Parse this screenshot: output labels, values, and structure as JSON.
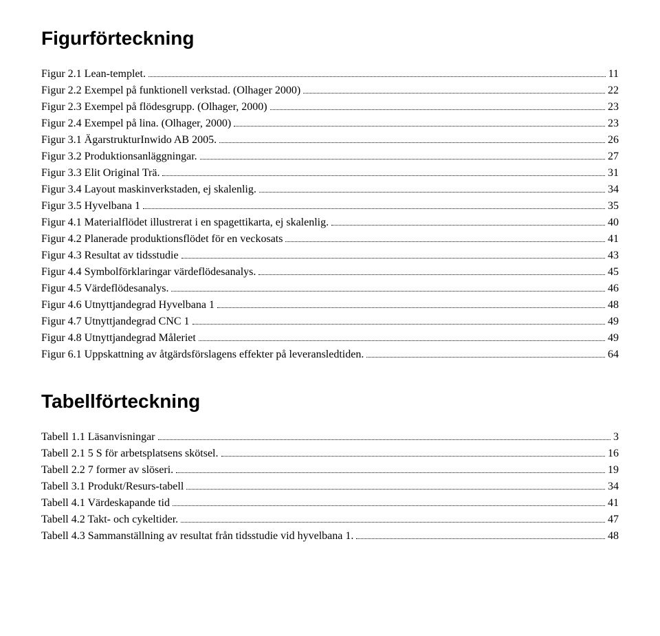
{
  "figures": {
    "heading": "Figurförteckning",
    "entries": [
      {
        "label": "Figur 2.1 Lean-templet.",
        "page": "11"
      },
      {
        "label": "Figur 2.2 Exempel på funktionell verkstad. (Olhager 2000)",
        "page": "22"
      },
      {
        "label": "Figur 2.3 Exempel på flödesgrupp. (Olhager, 2000)",
        "page": "23"
      },
      {
        "label": "Figur 2.4 Exempel på lina. (Olhager, 2000)",
        "page": "23"
      },
      {
        "label": "Figur 3.1 ÄgarstrukturInwido AB 2005.",
        "page": "26"
      },
      {
        "label": "Figur 3.2 Produktionsanläggningar.",
        "page": "27"
      },
      {
        "label": "Figur 3.3 Elit Original Trä.",
        "page": "31"
      },
      {
        "label": "Figur 3.4 Layout maskinverkstaden, ej skalenlig.",
        "page": "34"
      },
      {
        "label": "Figur 3.5 Hyvelbana 1",
        "page": "35"
      },
      {
        "label": "Figur 4.1 Materialflödet illustrerat i en spagettikarta, ej skalenlig.",
        "page": "40"
      },
      {
        "label": "Figur 4.2 Planerade produktionsflödet för en veckosats",
        "page": "41"
      },
      {
        "label": "Figur 4.3 Resultat av tidsstudie",
        "page": "43"
      },
      {
        "label": "Figur 4.4 Symbolförklaringar värdeflödesanalys.",
        "page": "45"
      },
      {
        "label": "Figur 4.5 Värdeflödesanalys.",
        "page": "46"
      },
      {
        "label": "Figur 4.6 Utnyttjandegrad Hyvelbana 1",
        "page": "48"
      },
      {
        "label": "Figur 4.7 Utnyttjandegrad CNC 1",
        "page": "49"
      },
      {
        "label": "Figur 4.8 Utnyttjandegrad Måleriet",
        "page": "49"
      },
      {
        "label": "Figur 6.1 Uppskattning av åtgärdsförslagens effekter på leveransledtiden.",
        "page": "64"
      }
    ]
  },
  "tables": {
    "heading": "Tabellförteckning",
    "entries": [
      {
        "label": "Tabell 1.1 Läsanvisningar",
        "page": "3"
      },
      {
        "label": "Tabell 2.1 5 S för arbetsplatsens skötsel.",
        "page": "16"
      },
      {
        "label": "Tabell 2.2 7 former av slöseri.",
        "page": "19"
      },
      {
        "label": "Tabell 3.1 Produkt/Resurs-tabell",
        "page": "34"
      },
      {
        "label": "Tabell 4.1 Värdeskapande tid",
        "page": "41"
      },
      {
        "label": "Tabell 4.2 Takt- och cykeltider.",
        "page": "47"
      },
      {
        "label": "Tabell 4.3 Sammanställning av resultat från tidsstudie vid hyvelbana 1.",
        "page": "48"
      }
    ]
  }
}
